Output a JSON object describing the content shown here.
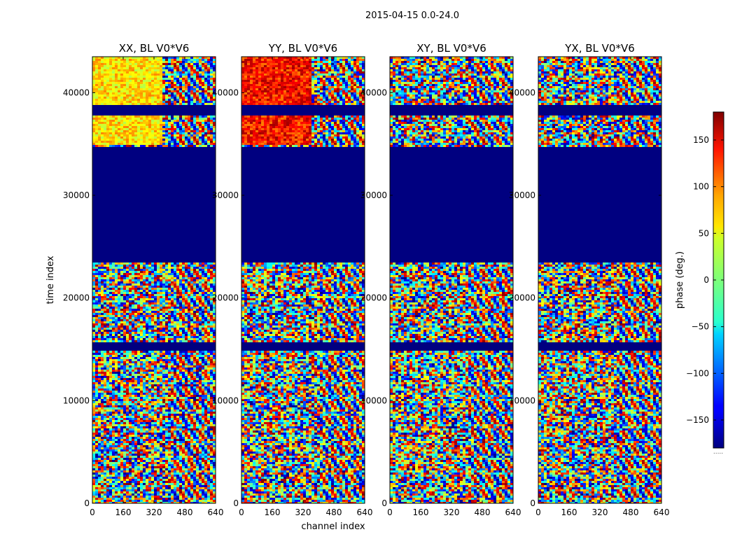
{
  "chart_data": {
    "type": "heatmap",
    "suptitle": "2015-04-15 0.0-24.0",
    "xlabel": "channel index",
    "ylabel": "time index",
    "xlim": [
      0,
      640
    ],
    "ylim": [
      0,
      43500
    ],
    "x_ticks": [
      0,
      160,
      320,
      480,
      640
    ],
    "y_ticks": [
      0,
      10000,
      20000,
      30000,
      40000
    ],
    "panels": [
      {
        "title": "XX, BL V0*V6",
        "pol": "XX"
      },
      {
        "title": "YY, BL V0*V6",
        "pol": "YY"
      },
      {
        "title": "XY, BL V0*V6",
        "pol": "XY"
      },
      {
        "title": "YX, BL V0*V6",
        "pol": "YX"
      }
    ],
    "flagged_time_ranges": [
      [
        23500,
        34800
      ],
      [
        37800,
        38800
      ],
      [
        15000,
        15700
      ]
    ],
    "colorbar": {
      "label": "phase (deg.)",
      "range": [
        -180,
        180
      ],
      "ticks": [
        -150,
        -100,
        -50,
        0,
        50,
        100,
        150
      ],
      "tick_labels": [
        "−150",
        "−100",
        "−50",
        "0",
        "50",
        "100",
        "150"
      ],
      "colormap": "jet",
      "extra": "....."
    }
  }
}
